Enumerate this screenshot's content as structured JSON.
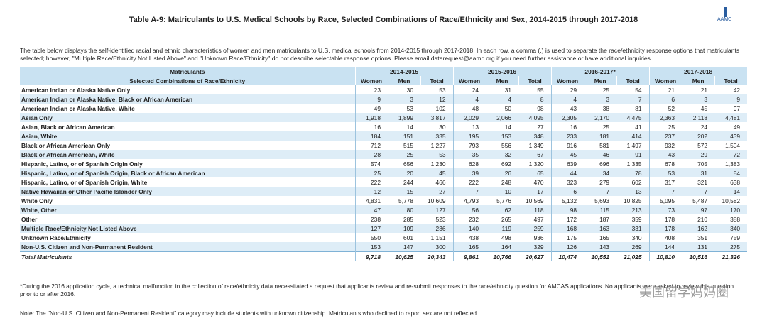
{
  "header": {
    "title": "Table A-9: Matriculants to U.S. Medical Schools by Race, Selected Combinations of Race/Ethnicity and Sex, 2014-2015 through 2017-2018",
    "logo": "AAMC"
  },
  "intro": "The table below displays the self-identified racial and ethnic characteristics of women and men matriculants to U.S. medical schools from 2014-2015 through 2017-2018. In each row, a comma (,) is used to separate the race/ethnicity response options that matriculants selected; however, \"Multiple Race/Ethnicity Not Listed Above\" and \"Unknown Race/Ethnicity\" do not describe selectable response options. Please email datarequest@aamc.org if you need further assistance or have additional inquiries.",
  "table": {
    "group_header": "Matriculants",
    "row_header": "Selected Combinations of Race/Ethnicity",
    "years": [
      "2014-2015",
      "2015-2016",
      "2016-2017*",
      "2017-2018"
    ],
    "sex_labels": [
      "Women",
      "Men",
      "Total"
    ],
    "rows": [
      {
        "label": "American Indian or Alaska Native Only",
        "values": [
          "23",
          "30",
          "53",
          "24",
          "31",
          "55",
          "29",
          "25",
          "54",
          "21",
          "21",
          "42"
        ]
      },
      {
        "label": "American Indian or Alaska Native, Black or African American",
        "values": [
          "9",
          "3",
          "12",
          "4",
          "4",
          "8",
          "4",
          "3",
          "7",
          "6",
          "3",
          "9"
        ]
      },
      {
        "label": "American Indian or Alaska Native, White",
        "values": [
          "49",
          "53",
          "102",
          "48",
          "50",
          "98",
          "43",
          "38",
          "81",
          "52",
          "45",
          "97"
        ]
      },
      {
        "label": "Asian Only",
        "values": [
          "1,918",
          "1,899",
          "3,817",
          "2,029",
          "2,066",
          "4,095",
          "2,305",
          "2,170",
          "4,475",
          "2,363",
          "2,118",
          "4,481"
        ]
      },
      {
        "label": "Asian, Black or African American",
        "values": [
          "16",
          "14",
          "30",
          "13",
          "14",
          "27",
          "16",
          "25",
          "41",
          "25",
          "24",
          "49"
        ]
      },
      {
        "label": "Asian, White",
        "values": [
          "184",
          "151",
          "335",
          "195",
          "153",
          "348",
          "233",
          "181",
          "414",
          "237",
          "202",
          "439"
        ]
      },
      {
        "label": "Black or African American Only",
        "values": [
          "712",
          "515",
          "1,227",
          "793",
          "556",
          "1,349",
          "916",
          "581",
          "1,497",
          "932",
          "572",
          "1,504"
        ]
      },
      {
        "label": "Black or African American, White",
        "values": [
          "28",
          "25",
          "53",
          "35",
          "32",
          "67",
          "45",
          "46",
          "91",
          "43",
          "29",
          "72"
        ]
      },
      {
        "label": "Hispanic, Latino, or of Spanish Origin Only",
        "values": [
          "574",
          "656",
          "1,230",
          "628",
          "692",
          "1,320",
          "639",
          "696",
          "1,335",
          "678",
          "705",
          "1,383"
        ]
      },
      {
        "label": "Hispanic, Latino, or of Spanish Origin, Black or African American",
        "values": [
          "25",
          "20",
          "45",
          "39",
          "26",
          "65",
          "44",
          "34",
          "78",
          "53",
          "31",
          "84"
        ]
      },
      {
        "label": "Hispanic, Latino, or of Spanish Origin, White",
        "values": [
          "222",
          "244",
          "466",
          "222",
          "248",
          "470",
          "323",
          "279",
          "602",
          "317",
          "321",
          "638"
        ]
      },
      {
        "label": "Native Hawaiian or Other Pacific Islander Only",
        "values": [
          "12",
          "15",
          "27",
          "7",
          "10",
          "17",
          "6",
          "7",
          "13",
          "7",
          "7",
          "14"
        ]
      },
      {
        "label": "White Only",
        "values": [
          "4,831",
          "5,778",
          "10,609",
          "4,793",
          "5,776",
          "10,569",
          "5,132",
          "5,693",
          "10,825",
          "5,095",
          "5,487",
          "10,582"
        ]
      },
      {
        "label": "White, Other",
        "values": [
          "47",
          "80",
          "127",
          "56",
          "62",
          "118",
          "98",
          "115",
          "213",
          "73",
          "97",
          "170"
        ]
      },
      {
        "label": "Other",
        "values": [
          "238",
          "285",
          "523",
          "232",
          "265",
          "497",
          "172",
          "187",
          "359",
          "178",
          "210",
          "388"
        ]
      },
      {
        "label": "Multiple Race/Ethnicity Not Listed Above",
        "values": [
          "127",
          "109",
          "236",
          "140",
          "119",
          "259",
          "168",
          "163",
          "331",
          "178",
          "162",
          "340"
        ]
      },
      {
        "label": "Unknown Race/Ethnicity",
        "values": [
          "550",
          "601",
          "1,151",
          "438",
          "498",
          "936",
          "175",
          "165",
          "340",
          "408",
          "351",
          "759"
        ]
      },
      {
        "label": "Non-U.S. Citizen and Non-Permanent Resident",
        "values": [
          "153",
          "147",
          "300",
          "165",
          "164",
          "329",
          "126",
          "143",
          "269",
          "144",
          "131",
          "275"
        ]
      },
      {
        "label": "Total Matriculants",
        "values": [
          "9,718",
          "10,625",
          "20,343",
          "9,861",
          "10,766",
          "20,627",
          "10,474",
          "10,551",
          "21,025",
          "10,810",
          "10,516",
          "21,326"
        ]
      }
    ]
  },
  "footnote": "*During the 2016 application cycle, a technical malfunction in the collection of race/ethnicity data necessitated a request that applicants review and re-submit responses to the race/ethnicity question for AMCAS applications. No applicants were asked to review this question prior to or after 2016.",
  "note": "Note: The \"Non-U.S. Citizen and Non-Permanent Resident\" category may include students with unknown citizenship. Matriculants who declined to report sex are not reflected.",
  "watermark": "美国留学妈妈圈"
}
